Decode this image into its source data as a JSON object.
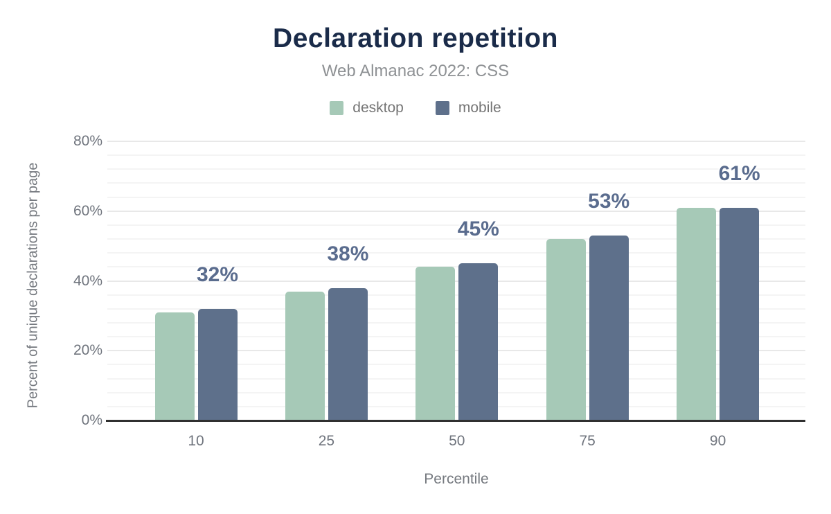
{
  "chart_data": {
    "type": "bar",
    "title": "Declaration repetition",
    "subtitle": "Web Almanac 2022: CSS",
    "xlabel": "Percentile",
    "ylabel": "Percent of unique declarations per page",
    "categories": [
      "10",
      "25",
      "50",
      "75",
      "90"
    ],
    "series": [
      {
        "name": "desktop",
        "color": "#a6c9b7",
        "values": [
          31,
          37,
          44,
          52,
          61
        ]
      },
      {
        "name": "mobile",
        "color": "#5e708b",
        "values": [
          32,
          38,
          45,
          53,
          61
        ]
      }
    ],
    "bar_labels": [
      "32%",
      "38%",
      "45%",
      "53%",
      "61%"
    ],
    "ylim": [
      0,
      80
    ],
    "y_major_ticks": [
      0,
      20,
      40,
      60,
      80
    ],
    "y_tick_labels": [
      "0%",
      "20%",
      "40%",
      "60%",
      "80%"
    ],
    "y_minor_step": 4,
    "grid": true,
    "legend_position": "top"
  },
  "colors": {
    "background": "#ffffff",
    "title": "#1a2b49",
    "subtitle": "#8e9194",
    "legend_text": "#757575",
    "axis_text": "#6f747d",
    "axis_title": "#75797f",
    "axis_line": "#303030",
    "grid_major": "#e8e8e8",
    "grid_minor": "#f4f4f4",
    "bar_label": "#5a6c8e",
    "desktop": "#a6c9b7",
    "mobile": "#5e708b"
  }
}
